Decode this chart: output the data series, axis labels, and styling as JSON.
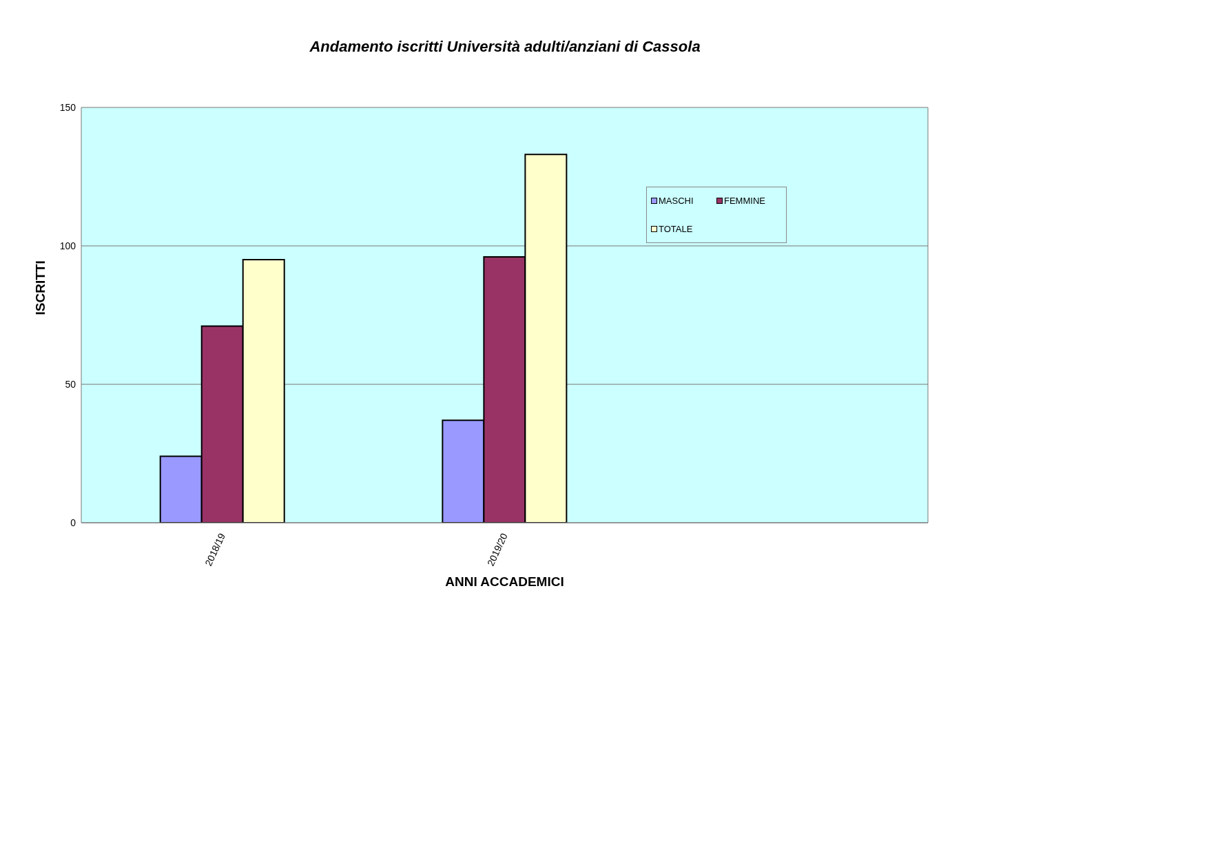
{
  "chart_data": {
    "type": "bar",
    "title": "Andamento iscritti Università adulti/anziani di Cassola",
    "xlabel": "ANNI ACCADEMICI",
    "ylabel": "ISCRITTI",
    "categories": [
      "2018/19",
      "2019/20",
      null
    ],
    "series": [
      {
        "name": "MASCHI",
        "color": "#9999ff",
        "values": [
          24,
          37,
          null
        ]
      },
      {
        "name": "FEMMINE",
        "color": "#993366",
        "values": [
          71,
          96,
          null
        ]
      },
      {
        "name": "TOTALE",
        "color": "#ffffcc",
        "values": [
          95,
          133,
          null
        ]
      }
    ],
    "ylim": [
      0,
      150
    ],
    "yticks": [
      0,
      50,
      100,
      150
    ],
    "grid": "y",
    "legend": "top right"
  }
}
